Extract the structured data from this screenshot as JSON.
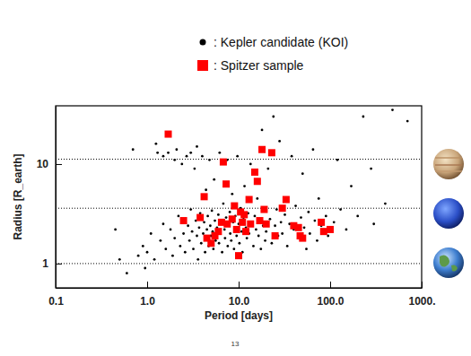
{
  "chart_data": {
    "type": "scatter",
    "x_label": "Period [days]",
    "y_label": "Radius [R_earth]",
    "page_number": "13",
    "log": true,
    "grid": false,
    "xlim": [
      0.1,
      1000
    ],
    "xticks": [
      0.1,
      {
        "value": 1,
        "label": "1.0"
      },
      {
        "value": 10,
        "label": "10.0"
      },
      {
        "value": 100,
        "label": "100.0"
      },
      {
        "value": 1000,
        "label": "1000."
      }
    ],
    "ylim": [
      0.57,
      38.5
    ],
    "yticks": [
      1,
      10
    ],
    "hlines": [
      1,
      3.6,
      11.2
    ],
    "series": [
      {
        "name": ": Kepler candidate (KOI)",
        "color": "#000000",
        "marker": "circle",
        "x": [
          0.45,
          0.5,
          0.6,
          0.7,
          0.8,
          0.9,
          0.95,
          1.0,
          1.1,
          1.2,
          1.25,
          1.3,
          1.4,
          1.5,
          1.5,
          1.6,
          1.7,
          1.8,
          1.9,
          2.0,
          2.0,
          2.1,
          2.2,
          2.3,
          2.4,
          2.5,
          2.6,
          2.7,
          2.8,
          2.9,
          3.0,
          3.0,
          3.1,
          3.2,
          3.3,
          3.4,
          3.5,
          3.5,
          3.6,
          3.7,
          3.8,
          3.9,
          4.0,
          4.1,
          4.2,
          4.3,
          4.4,
          4.5,
          4.6,
          4.7,
          4.8,
          4.9,
          5.0,
          5.1,
          5.2,
          5.3,
          5.4,
          5.5,
          5.6,
          5.8,
          6.0,
          6.1,
          6.2,
          6.3,
          6.5,
          6.6,
          6.8,
          7.0,
          7.1,
          7.3,
          7.5,
          7.6,
          7.8,
          8.0,
          8.1,
          8.3,
          8.5,
          8.7,
          8.9,
          9.0,
          9.2,
          9.5,
          9.7,
          10.0,
          10.2,
          10.5,
          10.8,
          11.0,
          11.3,
          11.6,
          12.0,
          12.3,
          12.7,
          13.0,
          13.5,
          14.0,
          14.5,
          15.0,
          15.5,
          16.0,
          16.5,
          17.0,
          17.5,
          18.0,
          18.5,
          19.0,
          19.5,
          20.0,
          21,
          22,
          23,
          24,
          25,
          26,
          27,
          28,
          29,
          30,
          32,
          34,
          36,
          38,
          40,
          42,
          45,
          48,
          50,
          52,
          55,
          58,
          60,
          65,
          68,
          72,
          75,
          80,
          90,
          95,
          110,
          120,
          130,
          150,
          170,
          200,
          230,
          280,
          300,
          400,
          480,
          700
        ],
        "values": [
          2.2,
          1.1,
          0.8,
          14,
          1.2,
          1.5,
          0.9,
          1.3,
          2.0,
          1.1,
          16,
          13,
          1.7,
          12,
          2.5,
          1.4,
          13,
          2.2,
          1.2,
          11,
          1.8,
          14,
          3.0,
          1.5,
          10,
          2.0,
          1.3,
          12,
          2.4,
          1.7,
          3.5,
          13,
          2.1,
          1.4,
          9,
          2.7,
          1.9,
          15,
          1.1,
          2.3,
          3.2,
          1.6,
          12,
          2.0,
          2.6,
          1.3,
          5.5,
          2.2,
          3.0,
          1.5,
          11,
          2.4,
          1.9,
          3.4,
          2.1,
          1.4,
          7,
          2.7,
          1.7,
          2.3,
          3.1,
          1.6,
          13,
          2.0,
          2.5,
          1.3,
          4.0,
          2.2,
          1.8,
          2.9,
          11,
          1.5,
          2.4,
          3.3,
          2.0,
          1.7,
          5.0,
          2.6,
          1.4,
          2.2,
          3.0,
          1.9,
          12,
          2.5,
          1.6,
          3.6,
          2.1,
          1.3,
          2.8,
          6,
          2.3,
          1.8,
          3.2,
          2.0,
          10,
          2.6,
          1.5,
          3.0,
          2.2,
          4.5,
          1.9,
          2.7,
          1.4,
          22,
          2.4,
          3.4,
          1.7,
          2.1,
          9,
          2.8,
          1.6,
          30,
          2.4,
          3.5,
          1.9,
          17,
          2.6,
          2.0,
          3.1,
          1.5,
          2.5,
          12,
          2.2,
          3.8,
          1.8,
          2.9,
          8,
          2.3,
          1.4,
          3.3,
          2.0,
          14,
          2.7,
          1.7,
          4.5,
          2.4,
          3.0,
          1.9,
          2.6,
          11,
          3.5,
          2.2,
          6,
          3.0,
          30,
          9,
          2.5,
          4,
          35,
          27
        ]
      },
      {
        "name": ": Spitzer sample",
        "color": "#ff0000",
        "marker": "square",
        "x": [
          1.7,
          2.5,
          3.8,
          4.2,
          4.5,
          5.0,
          5.5,
          6.0,
          6.5,
          6.8,
          7.3,
          7.5,
          8.5,
          9.0,
          9.5,
          10.0,
          10.5,
          11.0,
          11.5,
          12,
          13,
          13.5,
          15,
          16,
          17,
          18,
          19,
          20,
          23,
          25,
          30,
          33,
          40,
          45,
          47,
          50,
          80,
          85,
          100
        ],
        "values": [
          20,
          2.7,
          2.9,
          4.7,
          1.8,
          1.6,
          1.9,
          2.1,
          2.6,
          10.5,
          6.3,
          2.5,
          2.8,
          3.8,
          2.2,
          1.2,
          3.3,
          2.6,
          3.1,
          2.1,
          4.4,
          2.5,
          8.3,
          6.7,
          2.7,
          14,
          3.5,
          2.5,
          13,
          1.9,
          3.6,
          4.4,
          2.4,
          2.3,
          1.9,
          1.8,
          2.6,
          2.1,
          2.2
        ]
      }
    ]
  }
}
